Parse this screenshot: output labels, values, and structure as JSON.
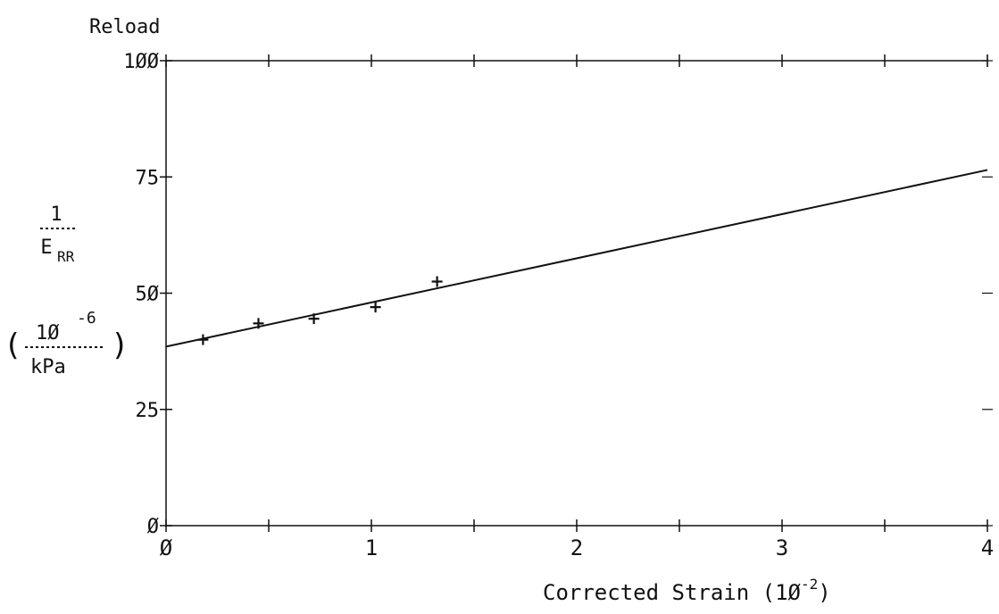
{
  "chart_data": {
    "type": "scatter",
    "title": "Reload",
    "xlabel": "Corrected Strain (10⁻²)",
    "xlabel_text": "Corrected Strain (1Ø",
    "xlabel_exp": "-2",
    "xlabel_close": ")",
    "ylabel": {
      "numerator": "1",
      "denominator": "E",
      "denominator_subscript": "RR",
      "unit_open": "(",
      "unit_numerator": "1Ø",
      "unit_numerator_exp": "-6",
      "unit_denominator": "kPa",
      "unit_close": ")"
    },
    "xlim": [
      0,
      4
    ],
    "ylim": [
      0,
      100
    ],
    "x_ticks": [
      0,
      1,
      2,
      3,
      4
    ],
    "x_tick_labels": [
      "Ø",
      "1",
      "2",
      "3",
      "4"
    ],
    "y_ticks": [
      0,
      25,
      50,
      75,
      100
    ],
    "y_tick_labels": [
      "Ø",
      "25",
      "5Ø",
      "75",
      "1ØØ"
    ],
    "grid": false,
    "points": [
      {
        "x": 0.18,
        "y": 40.0
      },
      {
        "x": 0.45,
        "y": 43.5
      },
      {
        "x": 0.72,
        "y": 44.5
      },
      {
        "x": 1.02,
        "y": 47.0
      },
      {
        "x": 1.32,
        "y": 52.5
      }
    ],
    "fit_line": {
      "x": [
        0,
        4
      ],
      "y": [
        38.5,
        76.5
      ]
    },
    "color": "#111111"
  }
}
